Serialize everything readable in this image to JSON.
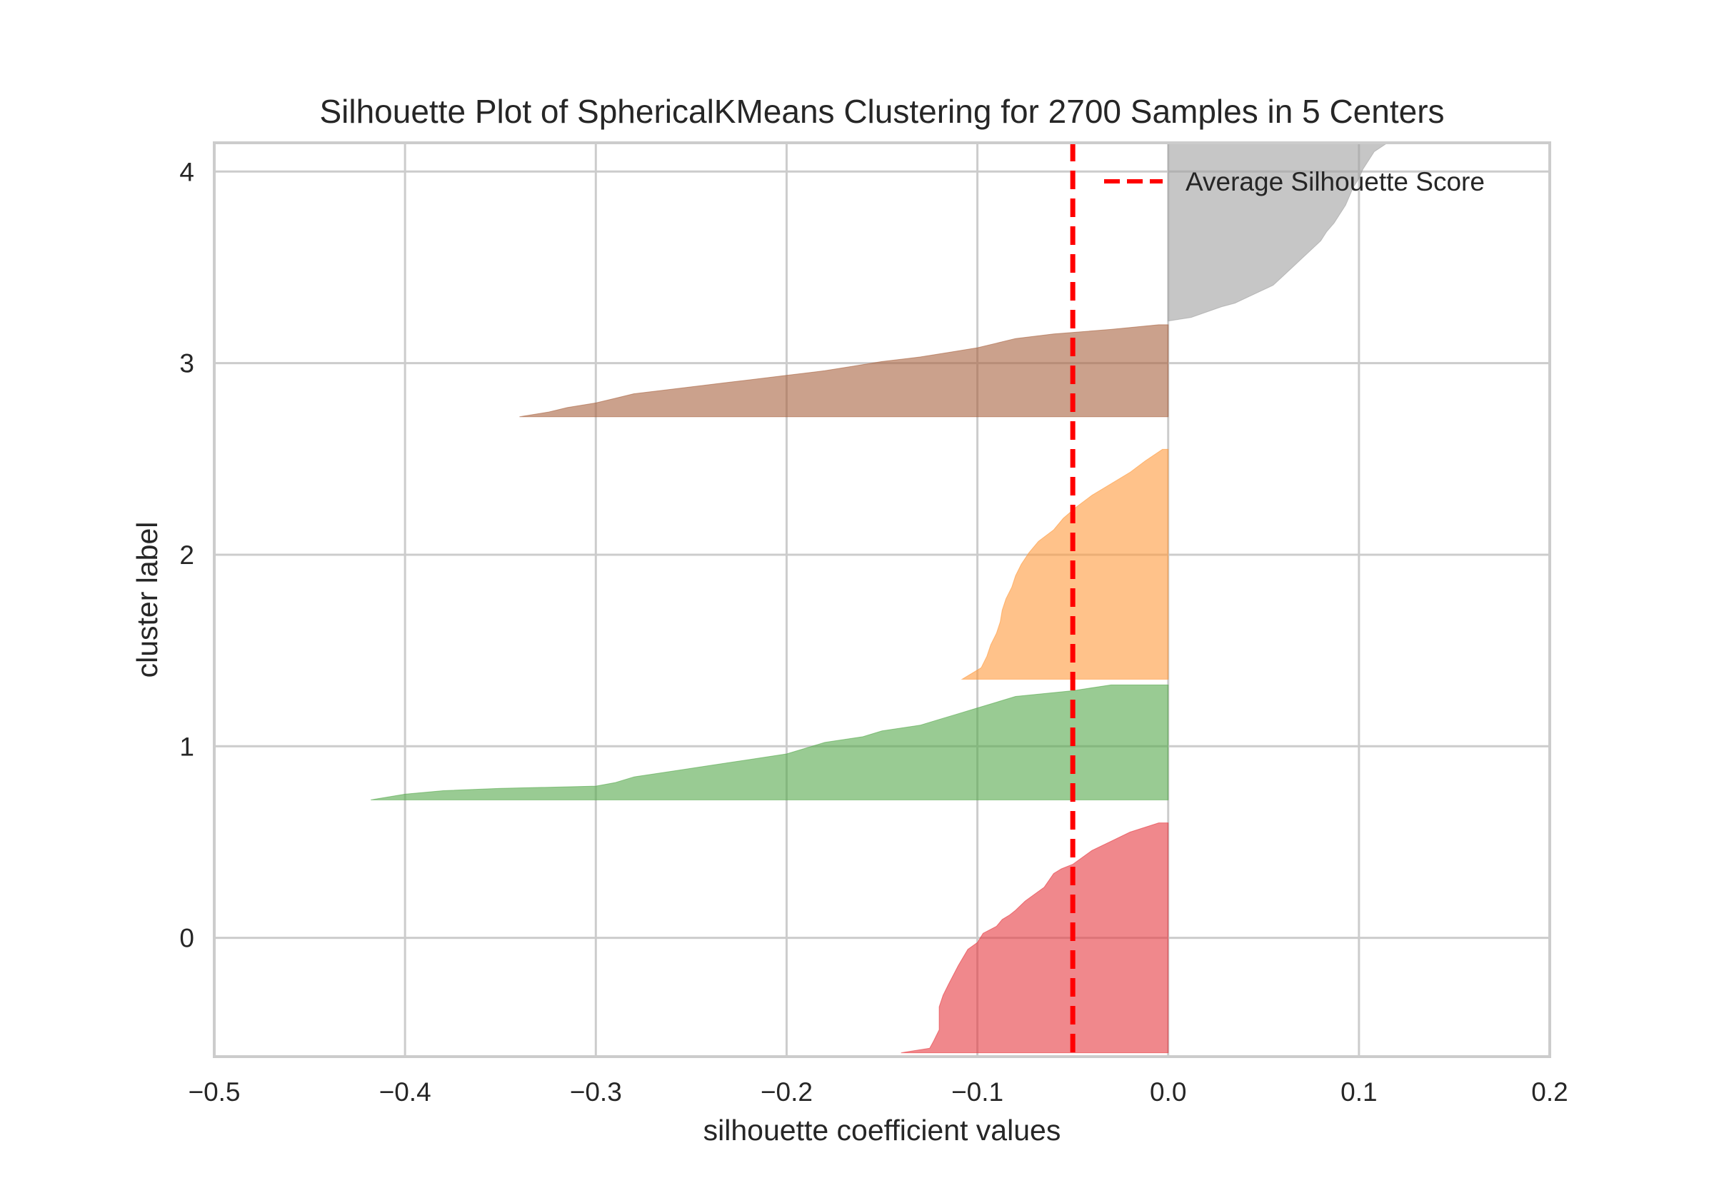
{
  "chart_data": {
    "type": "area",
    "title": "Silhouette Plot of SphericalKMeans Clustering for 2700 Samples in 5 Centers",
    "xlabel": "silhouette coefficient values",
    "ylabel": "cluster label",
    "xlim": [
      -0.5,
      0.2
    ],
    "ylim": [
      -0.62,
      4.15
    ],
    "grid": true,
    "x_ticks": [
      -0.5,
      -0.4,
      -0.3,
      -0.2,
      -0.1,
      0.0,
      0.1,
      0.2
    ],
    "x_tick_labels": [
      "−0.5",
      "−0.4",
      "−0.3",
      "−0.2",
      "−0.1",
      "0.0",
      "0.1",
      "0.2"
    ],
    "y_ticks": [
      0,
      1,
      2,
      3,
      4
    ],
    "y_tick_labels": [
      "0",
      "1",
      "2",
      "3",
      "4"
    ],
    "legend": {
      "placement": "upper-right",
      "entries": [
        {
          "label": "Average Silhouette Score",
          "color": "#ff0000",
          "style": "dashed"
        }
      ]
    },
    "average_silhouette_score": -0.05,
    "series": [
      {
        "cluster": "0",
        "color": "#e6393f",
        "y_range": [
          -0.6,
          0.6
        ],
        "profile": [
          [
            0.0,
            -0.14
          ],
          [
            0.02,
            -0.125
          ],
          [
            0.05,
            -0.123
          ],
          [
            0.1,
            -0.12
          ],
          [
            0.2,
            -0.12
          ],
          [
            0.25,
            -0.118
          ],
          [
            0.3,
            -0.115
          ],
          [
            0.38,
            -0.11
          ],
          [
            0.45,
            -0.105
          ],
          [
            0.48,
            -0.1
          ],
          [
            0.52,
            -0.097
          ],
          [
            0.55,
            -0.09
          ],
          [
            0.58,
            -0.087
          ],
          [
            0.6,
            -0.083
          ],
          [
            0.62,
            -0.08
          ],
          [
            0.66,
            -0.075
          ],
          [
            0.72,
            -0.065
          ],
          [
            0.78,
            -0.06
          ],
          [
            0.8,
            -0.056
          ],
          [
            0.82,
            -0.05
          ],
          [
            0.88,
            -0.04
          ],
          [
            0.92,
            -0.03
          ],
          [
            0.96,
            -0.02
          ],
          [
            1.0,
            -0.005
          ]
        ]
      },
      {
        "cluster": "1",
        "color": "#55a84b",
        "y_range": [
          0.72,
          1.32
        ],
        "profile": [
          [
            0.0,
            -0.418
          ],
          [
            0.05,
            -0.4
          ],
          [
            0.08,
            -0.38
          ],
          [
            0.1,
            -0.35
          ],
          [
            0.12,
            -0.3
          ],
          [
            0.15,
            -0.29
          ],
          [
            0.2,
            -0.28
          ],
          [
            0.25,
            -0.26
          ],
          [
            0.3,
            -0.24
          ],
          [
            0.35,
            -0.22
          ],
          [
            0.4,
            -0.2
          ],
          [
            0.45,
            -0.19
          ],
          [
            0.5,
            -0.18
          ],
          [
            0.55,
            -0.16
          ],
          [
            0.6,
            -0.15
          ],
          [
            0.65,
            -0.13
          ],
          [
            0.7,
            -0.12
          ],
          [
            0.75,
            -0.11
          ],
          [
            0.8,
            -0.1
          ],
          [
            0.85,
            -0.09
          ],
          [
            0.9,
            -0.08
          ],
          [
            0.95,
            -0.05
          ],
          [
            1.0,
            -0.03
          ]
        ]
      },
      {
        "cluster": "2",
        "color": "#ff9a3c",
        "y_range": [
          1.35,
          2.55
        ],
        "profile": [
          [
            0.0,
            -0.108
          ],
          [
            0.05,
            -0.098
          ],
          [
            0.1,
            -0.095
          ],
          [
            0.15,
            -0.093
          ],
          [
            0.2,
            -0.09
          ],
          [
            0.25,
            -0.088
          ],
          [
            0.3,
            -0.087
          ],
          [
            0.35,
            -0.085
          ],
          [
            0.4,
            -0.082
          ],
          [
            0.45,
            -0.08
          ],
          [
            0.5,
            -0.077
          ],
          [
            0.55,
            -0.073
          ],
          [
            0.6,
            -0.068
          ],
          [
            0.65,
            -0.06
          ],
          [
            0.7,
            -0.055
          ],
          [
            0.75,
            -0.048
          ],
          [
            0.8,
            -0.04
          ],
          [
            0.85,
            -0.03
          ],
          [
            0.9,
            -0.02
          ],
          [
            0.95,
            -0.012
          ],
          [
            1.0,
            -0.003
          ]
        ]
      },
      {
        "cluster": "3",
        "color": "#a8633f",
        "y_range": [
          2.72,
          3.2
        ],
        "profile": [
          [
            0.0,
            -0.34
          ],
          [
            0.05,
            -0.325
          ],
          [
            0.1,
            -0.315
          ],
          [
            0.15,
            -0.3
          ],
          [
            0.2,
            -0.29
          ],
          [
            0.25,
            -0.28
          ],
          [
            0.3,
            -0.26
          ],
          [
            0.35,
            -0.24
          ],
          [
            0.4,
            -0.22
          ],
          [
            0.45,
            -0.2
          ],
          [
            0.5,
            -0.18
          ],
          [
            0.55,
            -0.165
          ],
          [
            0.6,
            -0.15
          ],
          [
            0.65,
            -0.13
          ],
          [
            0.7,
            -0.115
          ],
          [
            0.75,
            -0.1
          ],
          [
            0.8,
            -0.09
          ],
          [
            0.85,
            -0.08
          ],
          [
            0.9,
            -0.06
          ],
          [
            0.95,
            -0.03
          ],
          [
            1.0,
            -0.005
          ]
        ]
      },
      {
        "cluster": "4",
        "color": "#a0a0a0",
        "y_range": [
          3.22,
          4.15
        ],
        "profile": [
          [
            0.0,
            0.0
          ],
          [
            0.02,
            0.012
          ],
          [
            0.05,
            0.02
          ],
          [
            0.08,
            0.028
          ],
          [
            0.1,
            0.035
          ],
          [
            0.15,
            0.045
          ],
          [
            0.2,
            0.055
          ],
          [
            0.25,
            0.06
          ],
          [
            0.3,
            0.065
          ],
          [
            0.35,
            0.07
          ],
          [
            0.4,
            0.075
          ],
          [
            0.45,
            0.08
          ],
          [
            0.5,
            0.083
          ],
          [
            0.55,
            0.087
          ],
          [
            0.6,
            0.09
          ],
          [
            0.65,
            0.093
          ],
          [
            0.7,
            0.095
          ],
          [
            0.75,
            0.097
          ],
          [
            0.8,
            0.1
          ],
          [
            0.85,
            0.102
          ],
          [
            0.9,
            0.105
          ],
          [
            0.95,
            0.108
          ],
          [
            1.0,
            0.115
          ]
        ]
      }
    ]
  }
}
